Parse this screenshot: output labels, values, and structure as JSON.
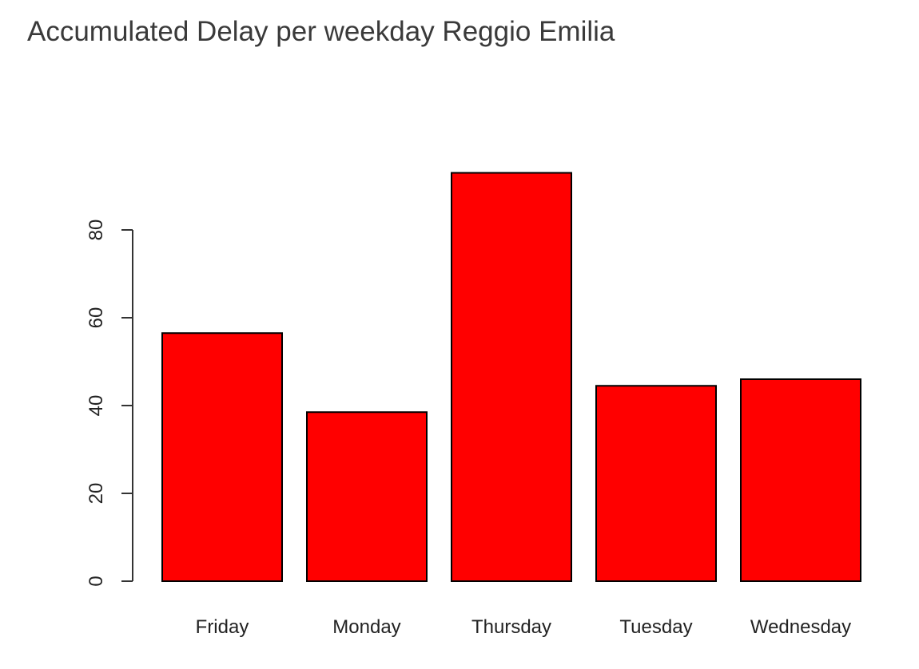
{
  "chart_data": {
    "type": "bar",
    "title": "Accumulated Delay per weekday Reggio Emilia",
    "xlabel": "",
    "ylabel": "",
    "categories": [
      "Friday",
      "Monday",
      "Thursday",
      "Tuesday",
      "Wednesday"
    ],
    "values": [
      56.5,
      38.5,
      93,
      44.5,
      46
    ],
    "ylim": [
      0,
      93
    ],
    "yticks": [
      0,
      20,
      40,
      60,
      80
    ],
    "grid": false,
    "bar_color": "#ff0000",
    "bar_border_color": "#000000"
  }
}
